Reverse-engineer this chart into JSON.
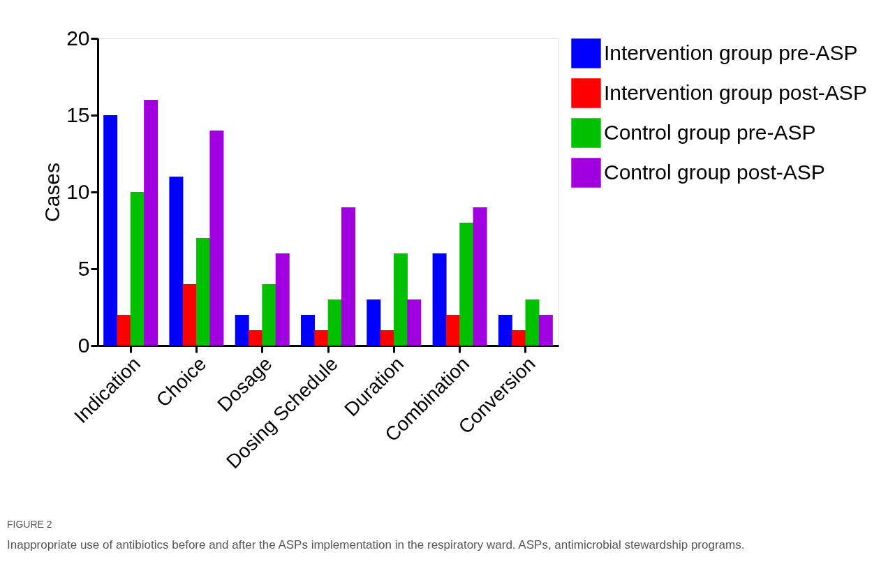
{
  "chart_data": {
    "type": "bar",
    "ylabel": "Cases",
    "categories": [
      "Indication",
      "Choice",
      "Dosage",
      "Dosing Schedule",
      "Duration",
      "Combination",
      "Conversion"
    ],
    "series": [
      {
        "name": "Intervention group pre-ASP",
        "color": "#0000ff",
        "values": [
          15,
          11,
          2,
          2,
          3,
          6,
          2
        ]
      },
      {
        "name": "Intervention group post-ASP",
        "color": "#ff0000",
        "values": [
          2,
          4,
          1,
          1,
          1,
          2,
          1
        ]
      },
      {
        "name": "Control group pre-ASP",
        "color": "#00c000",
        "values": [
          10,
          7,
          4,
          3,
          6,
          8,
          3
        ]
      },
      {
        "name": "Control group post-ASP",
        "color": "#a000e0",
        "values": [
          16,
          14,
          6,
          9,
          3,
          9,
          2
        ]
      }
    ],
    "ylim": [
      0,
      20
    ],
    "yticks": [
      0,
      5,
      10,
      15,
      20
    ],
    "grid": false,
    "legend": "top right",
    "annotations": [
      "FIGURE 2",
      "Inappropriate use of antibiotics before and after the ASPs implementation in the respiratory ward. ASPs, antimicrobial stewardship programs."
    ]
  }
}
